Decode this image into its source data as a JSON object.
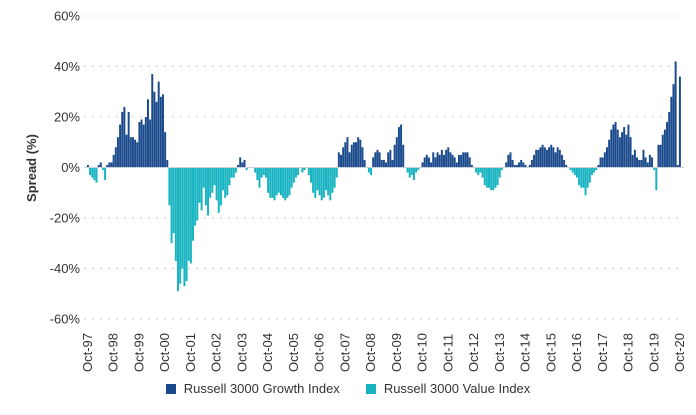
{
  "chart_data": {
    "type": "bar",
    "ylabel": "Spread (%)",
    "ylim": [
      -60,
      60
    ],
    "yticks": [
      "60%",
      "40%",
      "20%",
      "0%",
      "-20%",
      "-40%",
      "-60%"
    ],
    "ytick_values": [
      60,
      40,
      20,
      0,
      -20,
      -40,
      -60
    ],
    "grid": "horizontal dotted",
    "legend_placement": "bottom",
    "xticks": [
      "Oct-97",
      "Oct-98",
      "Oct-99",
      "Oct-00",
      "Oct-01",
      "Oct-02",
      "Oct-03",
      "Oct-04",
      "Oct-05",
      "Oct-06",
      "Oct-07",
      "Oct-08",
      "Oct-09",
      "Oct-10",
      "Oct-11",
      "Oct-12",
      "Oct-13",
      "Oct-14",
      "Oct-15",
      "Oct-16",
      "Oct-17",
      "Oct-18",
      "Oct-19",
      "Oct-20"
    ],
    "frequency": "monthly",
    "start": "Oct-97",
    "end": "Oct-20",
    "series": [
      {
        "name": "Russell 3000 Growth Index",
        "color": "#1a4a8c",
        "rule": "positive spread"
      },
      {
        "name": "Russell 3000 Value Index",
        "color": "#17b3c1",
        "rule": "negative spread"
      }
    ],
    "values": [
      1,
      -3,
      -4,
      -5,
      -6,
      1,
      2,
      -1,
      -5,
      1,
      2,
      2,
      5,
      8,
      12,
      17,
      22,
      24,
      13,
      22,
      12,
      12,
      11,
      10,
      18,
      19,
      17,
      20,
      27,
      19,
      37,
      30,
      26,
      34,
      28,
      29,
      14,
      3,
      -15,
      -30,
      -26,
      -37,
      -49,
      -46,
      -40,
      -47,
      -45,
      -37,
      -38,
      -29,
      -23,
      -21,
      -14,
      -17,
      -8,
      -15,
      -19,
      -12,
      -10,
      -7,
      -13,
      -18,
      -15,
      -9,
      -12,
      -11,
      -7,
      -4,
      -4,
      -2,
      1,
      4,
      2,
      3,
      -1,
      0,
      0,
      0,
      -2,
      -5,
      -8,
      -4,
      -3,
      -4,
      -10,
      -12,
      -12,
      -13,
      -11,
      -10,
      -11,
      -12,
      -13,
      -12,
      -11,
      -8,
      -6,
      -4,
      -3,
      0,
      -2,
      -1,
      0,
      -3,
      -6,
      -10,
      -12,
      -9,
      -11,
      -13,
      -12,
      -9,
      -11,
      -13,
      -10,
      -8,
      -4,
      6,
      5,
      8,
      10,
      12,
      6,
      9,
      10,
      10,
      12,
      11,
      8,
      3,
      0,
      -2,
      -3,
      4,
      6,
      7,
      6,
      3,
      3,
      2,
      6,
      7,
      3,
      9,
      12,
      16,
      17,
      9,
      0,
      -2,
      -4,
      -3,
      -5,
      -2,
      -1,
      0,
      2,
      4,
      5,
      4,
      2,
      6,
      4,
      6,
      5,
      7,
      5,
      7,
      8,
      6,
      5,
      4,
      2,
      5,
      5,
      6,
      6,
      6,
      4,
      1,
      0,
      -2,
      -3,
      -2,
      -4,
      -7,
      -8,
      -8,
      -9,
      -9,
      -8,
      -7,
      -4,
      -1,
      0,
      2,
      5,
      6,
      3,
      1,
      1,
      2,
      3,
      2,
      1,
      0,
      1,
      3,
      5,
      7,
      7,
      8,
      9,
      8,
      7,
      8,
      9,
      8,
      6,
      8,
      7,
      5,
      3,
      1,
      0,
      -1,
      -2,
      -3,
      -4,
      -7,
      -8,
      -8,
      -11,
      -8,
      -6,
      -3,
      -2,
      -1,
      1,
      4,
      4,
      6,
      8,
      11,
      15,
      17,
      18,
      15,
      12,
      14,
      16,
      13,
      17,
      12,
      5,
      7,
      4,
      3,
      3,
      7,
      4,
      2,
      5,
      4,
      -1,
      -9,
      9,
      9,
      13,
      15,
      18,
      22,
      28,
      33,
      42,
      1,
      36
    ]
  }
}
